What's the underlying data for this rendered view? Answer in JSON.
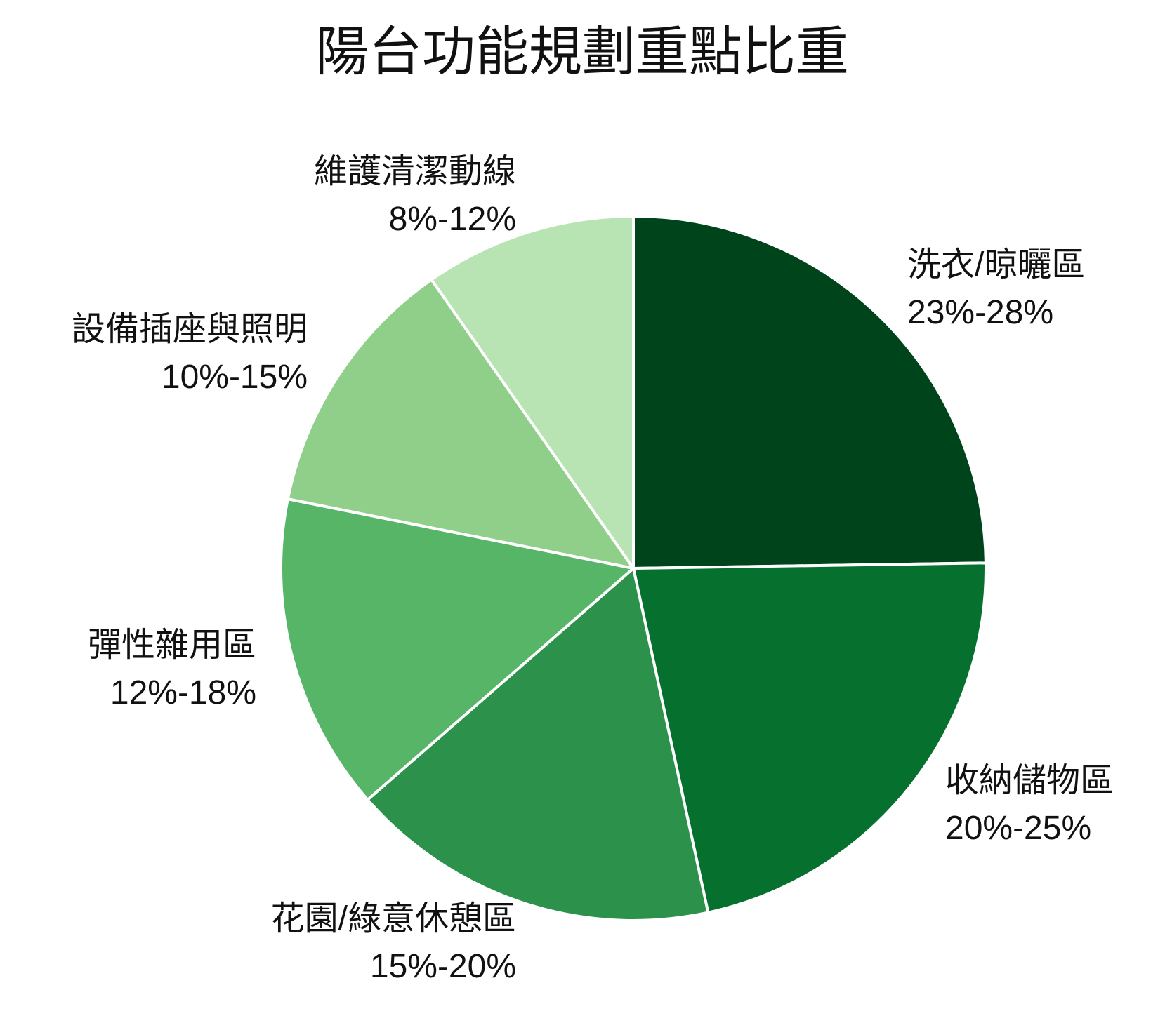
{
  "chart_data": {
    "type": "pie",
    "title": "陽台功能規劃重點比重",
    "start_angle_deg": 0,
    "direction": "clockwise",
    "slices": [
      {
        "name": "洗衣/晾曬區",
        "range_text": "23%-28%",
        "value": 25.5,
        "color": "#00441b"
      },
      {
        "name": "收納儲物區",
        "range_text": "20%-25%",
        "value": 22.5,
        "color": "#06712f"
      },
      {
        "name": "花園/綠意休憩區",
        "range_text": "15%-20%",
        "value": 17.5,
        "color": "#2c924b"
      },
      {
        "name": "彈性雜用區",
        "range_text": "12%-18%",
        "value": 15.0,
        "color": "#57b567"
      },
      {
        "name": "設備插座與照明",
        "range_text": "10%-15%",
        "value": 12.5,
        "color": "#8fcf89"
      },
      {
        "name": "維護清潔動線",
        "range_text": "8%-12%",
        "value": 10.0,
        "color": "#b8e3b2"
      }
    ]
  }
}
